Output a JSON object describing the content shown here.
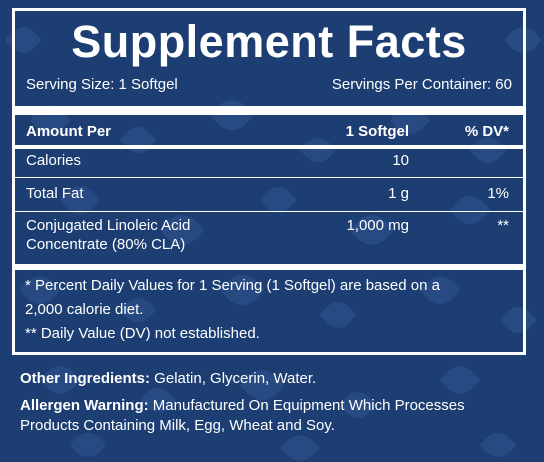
{
  "panel": {
    "title": "Supplement Facts",
    "serving_size": "Serving Size: 1 Softgel",
    "servings_per_container": "Servings Per Container: 60"
  },
  "table": {
    "headers": {
      "amount_per": "Amount Per",
      "serving_unit": "1 Softgel",
      "dv": "% DV*"
    },
    "rows": [
      {
        "name": "Calories",
        "amount": "10",
        "dv": ""
      },
      {
        "name": "Total Fat",
        "amount": "1 g",
        "dv": "1%"
      },
      {
        "name_line1": "Conjugated Linoleic Acid",
        "name_line2": "Concentrate (80% CLA)",
        "amount": "1,000 mg",
        "dv": "**"
      }
    ]
  },
  "footnotes": {
    "daily_values_line1": "* Percent Daily Values for 1 Serving (1 Softgel) are based on a",
    "daily_values_line2": "2,000 calorie diet.",
    "not_established": "** Daily Value (DV) not established."
  },
  "other_ingredients": {
    "label": "Other Ingredients:",
    "value": " Gelatin, Glycerin, Water."
  },
  "allergen_warning": {
    "label": "Allergen Warning:",
    "value_line1": " Manufactured On Equipment Which Processes",
    "value_line2": "Products Containing Milk, Egg, Wheat and Soy."
  },
  "colors": {
    "background": "#1d3e72",
    "text": "#ffffff",
    "leaf_pattern": "#2a4d85"
  }
}
